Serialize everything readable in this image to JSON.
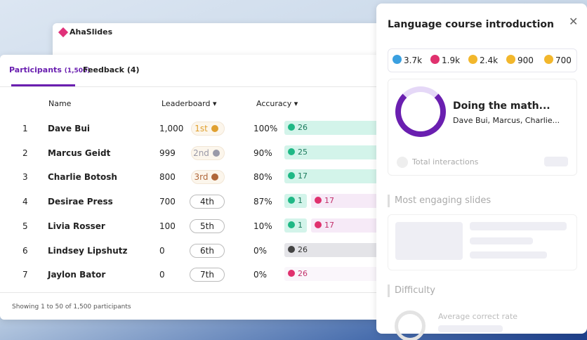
{
  "app": {
    "brand": "AhaSlides"
  },
  "tabs": [
    {
      "label": "Participants",
      "count": "(1,500)"
    },
    {
      "label": "Feedback (4)"
    }
  ],
  "table": {
    "headers": [
      "Name",
      "Leaderboard",
      "Accuracy"
    ],
    "rows": [
      {
        "rank": "1",
        "name": "Dave Bui",
        "score": "1,000",
        "place": "1st",
        "accuracy": "100%",
        "correct": "26"
      },
      {
        "rank": "2",
        "name": "Marcus Geidt",
        "score": "999",
        "place": "2nd",
        "accuracy": "90%",
        "correct": "25"
      },
      {
        "rank": "3",
        "name": "Charlie Botosh",
        "score": "800",
        "place": "3rd",
        "accuracy": "80%",
        "correct": "17"
      },
      {
        "rank": "4",
        "name": "Desirae Press",
        "score": "700",
        "place": "4th",
        "accuracy": "87%",
        "correct": "1",
        "wrong": "17"
      },
      {
        "rank": "5",
        "name": "Livia Rosser",
        "score": "100",
        "place": "5th",
        "accuracy": "10%",
        "correct": "1",
        "wrong": "17"
      },
      {
        "rank": "6",
        "name": "Lindsey Lipshutz",
        "score": "0",
        "place": "6th",
        "accuracy": "0%",
        "skipped": "26"
      },
      {
        "rank": "7",
        "name": "Jaylon Bator",
        "score": "0",
        "place": "7th",
        "accuracy": "0%",
        "wrong": "26"
      }
    ],
    "footer": "Showing 1 to 50 of 1,500 participants"
  },
  "panel": {
    "title": "Language course introduction",
    "reactions": [
      "3.7k",
      "1.9k",
      "2.4k",
      "900",
      "700"
    ],
    "progress": {
      "title": "Doing the math...",
      "names": "Dave Bui, Marcus, Charlie..."
    },
    "total": "Total interactions",
    "sections": [
      "Most engaging slides",
      "Difficulty"
    ],
    "average": "Average correct rate"
  }
}
